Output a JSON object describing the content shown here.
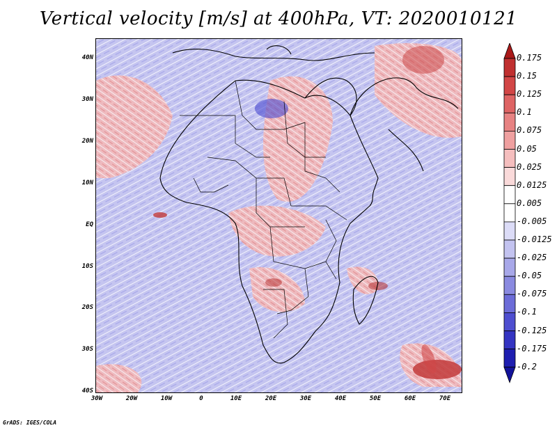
{
  "title": "Vertical velocity [m/s] at 400hPa, VT: 2020010121",
  "map": {
    "lat_ticks": [
      "40N",
      "30N",
      "20N",
      "10N",
      "EQ",
      "10S",
      "20S",
      "30S",
      "40S"
    ],
    "lon_ticks": [
      "30W",
      "20W",
      "10W",
      "0",
      "10E",
      "20E",
      "30E",
      "40E",
      "50E",
      "60E",
      "70E"
    ],
    "lat_range": [
      -40,
      45
    ],
    "lon_range": [
      -30,
      75
    ],
    "colors": {
      "background_blue": "#c9c9f2",
      "red_region": "#f2b6b6",
      "strong_red": "#c23a3a",
      "strong_blue": "#4a4ad0",
      "border": "#000000"
    }
  },
  "colorbar": {
    "labels": [
      "0.175",
      "0.15",
      "0.125",
      "0.1",
      "0.075",
      "0.05",
      "0.025",
      "0.0125",
      "0.005",
      "-0.005",
      "-0.0125",
      "-0.025",
      "-0.05",
      "-0.075",
      "-0.1",
      "-0.125",
      "-0.175",
      "-0.2"
    ],
    "colors": [
      "#aa1a1a",
      "#c03030",
      "#d24646",
      "#de6464",
      "#e78282",
      "#efa0a0",
      "#f5bebe",
      "#fadada",
      "#ffffff",
      "#ffffff",
      "#dcdcf7",
      "#c3c3f0",
      "#a8a8e9",
      "#8a8ae0",
      "#6c6cd8",
      "#4e4ed0",
      "#3434c2",
      "#1e1eb0",
      "#12129a"
    ]
  },
  "credit": "GrADS: IGES/COLA"
}
